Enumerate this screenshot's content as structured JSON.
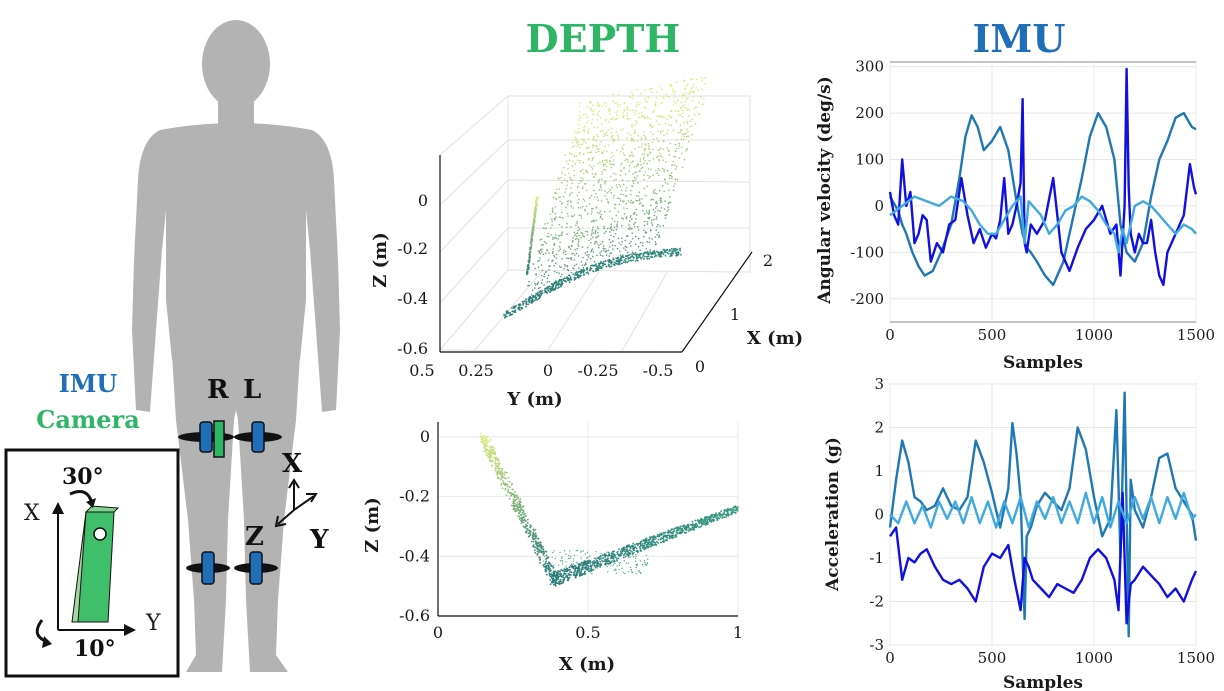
{
  "headers": {
    "depth": "DEPTH",
    "imu": "IMU",
    "depth_color": "#2eb565",
    "imu_color": "#1f6fb8"
  },
  "legend": {
    "imu": "IMU",
    "camera": "Camera",
    "imu_color": "#1f6fb8",
    "camera_color": "#2eb565"
  },
  "body": {
    "right_label": "R",
    "left_label": "L",
    "silhouette_color": "#b3b3b3"
  },
  "coord_axes": {
    "x": "X",
    "y": "Y",
    "z": "Z"
  },
  "inset": {
    "x_label": "X",
    "y_label": "Y",
    "tilt_angle": "30°",
    "rot_angle": "10°"
  },
  "chart_data": [
    {
      "type": "scatter",
      "title": "",
      "projection": "3d",
      "xlabel": "X (m)",
      "ylabel": "Y (m)",
      "zlabel": "Z (m)",
      "x_ticks": [
        "0",
        "1",
        "2"
      ],
      "y_ticks": [
        "0.5",
        "0.25",
        "0",
        "-0.25",
        "-0.5"
      ],
      "z_ticks": [
        "0",
        "-0.2",
        "-0.4",
        "-0.6"
      ],
      "xlim": [
        0,
        2
      ],
      "ylim": [
        -0.5,
        0.5
      ],
      "zlim": [
        -0.6,
        0.1
      ],
      "grid": true,
      "colormap": [
        "#2a7b77",
        "#d9ec7a"
      ]
    },
    {
      "type": "scatter",
      "title": "",
      "xlabel": "X (m)",
      "ylabel": "Z (m)",
      "x_ticks": [
        "0",
        "0.5",
        "1"
      ],
      "y_ticks": [
        "0",
        "-0.2",
        "-0.4",
        "-0.6"
      ],
      "xlim": [
        0,
        1
      ],
      "ylim": [
        -0.6,
        0.05
      ],
      "grid": true,
      "colormap": [
        "#2a7b77",
        "#d9ec7a"
      ]
    },
    {
      "type": "line",
      "title": "",
      "xlabel": "Samples",
      "ylabel": "Angular velocity (deg/s)",
      "x_ticks": [
        "0",
        "500",
        "1000",
        "1500"
      ],
      "y_ticks": [
        "300",
        "200",
        "100",
        "0",
        "-100",
        "-200"
      ],
      "xlim": [
        0,
        1500
      ],
      "ylim": [
        -250,
        310
      ],
      "grid": true,
      "series": [
        {
          "color": "#1f78b4",
          "x": [
            0,
            40,
            60,
            80,
            110,
            140,
            170,
            210,
            250,
            300,
            340,
            370,
            400,
            430,
            460,
            500,
            540,
            580,
            620,
            650,
            670,
            690,
            720,
            760,
            800,
            850,
            900,
            940,
            980,
            1020,
            1060,
            1100,
            1130,
            1160,
            1200,
            1240,
            1280,
            1320,
            1360,
            1400,
            1440,
            1480,
            1500
          ],
          "y": [
            20,
            -10,
            -40,
            -60,
            -100,
            -130,
            -150,
            -140,
            -100,
            -40,
            60,
            150,
            195,
            170,
            120,
            140,
            170,
            120,
            10,
            -60,
            -90,
            -100,
            -120,
            -150,
            -170,
            -120,
            -20,
            60,
            150,
            200,
            170,
            100,
            -40,
            -100,
            -120,
            -80,
            20,
            100,
            140,
            190,
            200,
            170,
            165
          ]
        },
        {
          "color": "#1010e0",
          "x": [
            0,
            20,
            40,
            60,
            80,
            100,
            120,
            140,
            160,
            180,
            200,
            230,
            260,
            290,
            320,
            350,
            380,
            410,
            440,
            470,
            500,
            520,
            540,
            560,
            580,
            600,
            620,
            640,
            650,
            660,
            670,
            690,
            720,
            760,
            800,
            840,
            880,
            920,
            960,
            1000,
            1040,
            1080,
            1110,
            1130,
            1150,
            1160,
            1170,
            1180,
            1200,
            1220,
            1240,
            1260,
            1280,
            1300,
            1320,
            1340,
            1360,
            1400,
            1440,
            1470,
            1490,
            1500
          ],
          "y": [
            30,
            -20,
            -40,
            100,
            0,
            30,
            -80,
            -60,
            -20,
            -30,
            -120,
            -80,
            -100,
            -40,
            -30,
            60,
            -20,
            -80,
            -50,
            -90,
            -60,
            -70,
            -30,
            60,
            -60,
            -40,
            0,
            50,
            230,
            -80,
            -100,
            -40,
            -60,
            -30,
            60,
            -100,
            -140,
            -90,
            -50,
            -30,
            0,
            -60,
            -40,
            -150,
            0,
            295,
            40,
            -60,
            -100,
            -60,
            -80,
            -80,
            -30,
            -100,
            -150,
            -170,
            -100,
            -60,
            -20,
            90,
            40,
            25
          ]
        },
        {
          "color": "#3fa9e0",
          "x": [
            0,
            60,
            120,
            180,
            240,
            300,
            360,
            400,
            440,
            480,
            520,
            560,
            600,
            640,
            660,
            680,
            700,
            740,
            780,
            820,
            860,
            900,
            940,
            980,
            1020,
            1060,
            1100,
            1120,
            1140,
            1160,
            1200,
            1240,
            1280,
            1320,
            1360,
            1400,
            1440,
            1480,
            1500
          ],
          "y": [
            -20,
            0,
            20,
            10,
            0,
            20,
            10,
            -10,
            -40,
            -60,
            -60,
            -30,
            0,
            20,
            -80,
            10,
            0,
            -20,
            -60,
            -40,
            -10,
            0,
            20,
            10,
            -10,
            -40,
            -60,
            -100,
            -50,
            -80,
            0,
            10,
            0,
            -20,
            -40,
            -60,
            -40,
            -50,
            -60
          ]
        }
      ]
    },
    {
      "type": "line",
      "title": "",
      "xlabel": "Samples",
      "ylabel": "Acceleration (g)",
      "x_ticks": [
        "0",
        "500",
        "1000",
        "1500"
      ],
      "y_ticks": [
        "3",
        "2",
        "1",
        "0",
        "-1",
        "-2",
        "-3"
      ],
      "xlim": [
        0,
        1500
      ],
      "ylim": [
        -3,
        3
      ],
      "grid": true,
      "series": [
        {
          "color": "#1f78b4",
          "x": [
            0,
            30,
            60,
            90,
            120,
            150,
            180,
            220,
            260,
            300,
            340,
            380,
            420,
            460,
            500,
            540,
            580,
            600,
            620,
            640,
            660,
            670,
            690,
            720,
            760,
            800,
            840,
            880,
            920,
            960,
            1000,
            1040,
            1080,
            1110,
            1130,
            1150,
            1170,
            1180,
            1200,
            1240,
            1280,
            1320,
            1360,
            1400,
            1440,
            1480,
            1500
          ],
          "y": [
            -0.3,
            0.8,
            1.7,
            1.2,
            0.4,
            0.3,
            0.1,
            0.2,
            0.6,
            0.2,
            0.1,
            0.4,
            1.7,
            1.2,
            0.5,
            -0.3,
            0.6,
            2.1,
            1.4,
            0.4,
            -2.4,
            -0.5,
            -0.3,
            0.2,
            0.5,
            0.3,
            0.1,
            0.6,
            2.0,
            1.5,
            0.4,
            -0.5,
            -0.1,
            2.4,
            -1.0,
            2.8,
            -2.8,
            0.8,
            0.1,
            -0.3,
            0.4,
            1.3,
            1.4,
            0.6,
            0.3,
            0.0,
            -0.6
          ]
        },
        {
          "color": "#1010e0",
          "x": [
            0,
            30,
            60,
            90,
            120,
            150,
            180,
            220,
            260,
            300,
            340,
            380,
            420,
            460,
            500,
            540,
            580,
            610,
            640,
            660,
            680,
            700,
            740,
            780,
            820,
            860,
            900,
            940,
            980,
            1020,
            1060,
            1100,
            1120,
            1140,
            1160,
            1180,
            1200,
            1240,
            1280,
            1320,
            1360,
            1400,
            1440,
            1480,
            1500
          ],
          "y": [
            -0.5,
            -0.3,
            -1.5,
            -1.0,
            -1.1,
            -0.9,
            -0.8,
            -1.2,
            -1.5,
            -1.6,
            -1.5,
            -1.7,
            -2.0,
            -1.2,
            -0.9,
            -1.0,
            -0.7,
            -1.5,
            -2.2,
            -1.0,
            -1.2,
            -1.5,
            -1.7,
            -1.9,
            -1.6,
            -1.7,
            -1.8,
            -1.5,
            -1.0,
            -0.8,
            -1.0,
            -1.5,
            -2.2,
            0.5,
            -2.5,
            -1.6,
            -1.5,
            -1.2,
            -1.4,
            -1.6,
            -1.9,
            -1.7,
            -2.0,
            -1.5,
            -1.3
          ]
        },
        {
          "color": "#3fa9e0",
          "x": [
            0,
            40,
            80,
            120,
            160,
            200,
            240,
            280,
            320,
            360,
            400,
            440,
            480,
            520,
            560,
            600,
            640,
            680,
            720,
            760,
            800,
            840,
            880,
            920,
            960,
            1000,
            1040,
            1080,
            1120,
            1160,
            1200,
            1240,
            1280,
            1320,
            1360,
            1400,
            1440,
            1480,
            1500
          ],
          "y": [
            0.0,
            -0.2,
            0.3,
            -0.2,
            0.2,
            -0.3,
            0.3,
            -0.1,
            0.3,
            -0.2,
            0.4,
            -0.2,
            0.3,
            -0.3,
            0.3,
            -0.2,
            0.4,
            -0.3,
            0.3,
            -0.1,
            0.4,
            -0.2,
            0.3,
            -0.2,
            0.5,
            -0.2,
            0.4,
            -0.3,
            0.3,
            -0.2,
            0.4,
            -0.1,
            0.4,
            -0.2,
            0.4,
            -0.1,
            0.5,
            -0.1,
            0.0
          ]
        }
      ]
    }
  ]
}
